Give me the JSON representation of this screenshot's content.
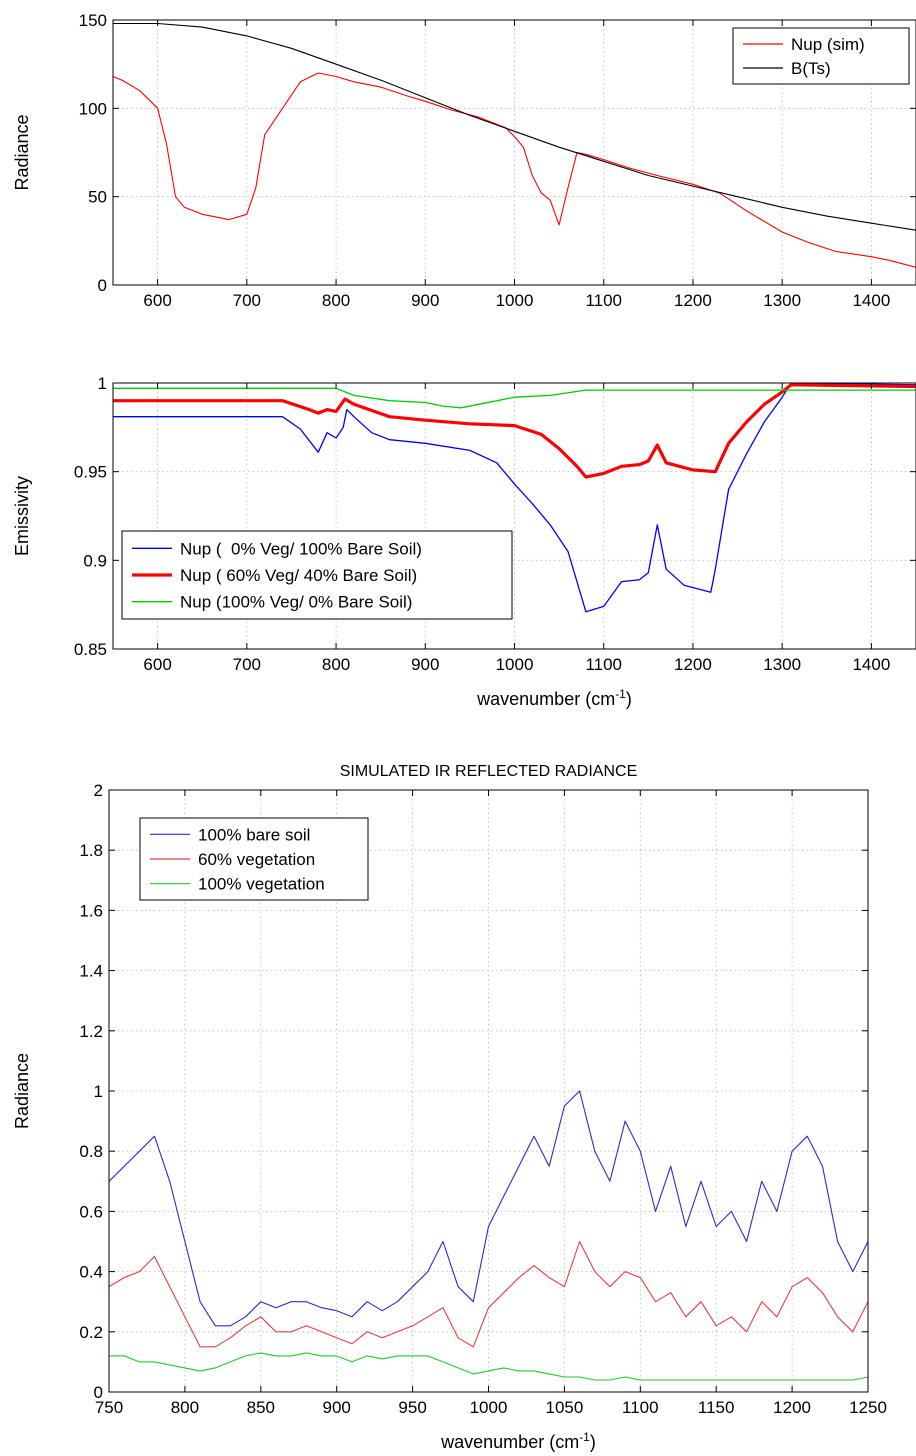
{
  "chart_data": [
    {
      "type": "line",
      "title": "",
      "xlabel": "",
      "ylabel": "Radiance",
      "xlim": [
        550,
        1450
      ],
      "ylim": [
        0,
        150
      ],
      "xticks": [
        600,
        700,
        800,
        900,
        1000,
        1100,
        1200,
        1300,
        1400
      ],
      "yticks": [
        0,
        50,
        100,
        150
      ],
      "grid": true,
      "legend_position": "top-right",
      "series": [
        {
          "name": "Nup (sim)",
          "color": "#ff0000",
          "x": [
            550,
            560,
            580,
            600,
            610,
            620,
            630,
            650,
            680,
            700,
            710,
            720,
            740,
            760,
            780,
            800,
            820,
            850,
            880,
            900,
            930,
            960,
            990,
            1000,
            1010,
            1020,
            1030,
            1040,
            1050,
            1060,
            1070,
            1080,
            1100,
            1130,
            1160,
            1200,
            1230,
            1260,
            1300,
            1330,
            1360,
            1400,
            1420,
            1450
          ],
          "y": [
            118,
            116,
            110,
            100,
            80,
            50,
            44,
            40,
            37,
            40,
            55,
            85,
            100,
            115,
            120,
            118,
            115,
            112,
            107,
            104,
            99,
            95,
            89,
            84,
            78,
            62,
            52,
            48,
            34,
            55,
            75,
            74,
            71,
            66,
            62,
            57,
            52,
            42,
            30,
            24,
            19,
            16,
            14,
            10
          ]
        },
        {
          "name": "B(Ts)",
          "color": "#000000",
          "x": [
            550,
            600,
            650,
            700,
            750,
            800,
            850,
            900,
            950,
            1000,
            1050,
            1100,
            1150,
            1200,
            1250,
            1300,
            1350,
            1400,
            1450
          ],
          "y": [
            148,
            148,
            146,
            141,
            134,
            125,
            116,
            106,
            96,
            87,
            78,
            70,
            62,
            56,
            50,
            44,
            39,
            35,
            31
          ]
        }
      ]
    },
    {
      "type": "line",
      "title": "",
      "xlabel": "wavenumber (cm⁻¹)",
      "ylabel": "Emissivity",
      "xlim": [
        550,
        1450
      ],
      "ylim": [
        0.85,
        1
      ],
      "xticks": [
        600,
        700,
        800,
        900,
        1000,
        1100,
        1200,
        1300,
        1400
      ],
      "yticks": [
        "0.85",
        "0.9",
        "0.95",
        "1"
      ],
      "grid": true,
      "legend_position": "lower-left",
      "series": [
        {
          "name": "Nup (  0% Veg/ 100% Bare Soil)",
          "color": "#0000ff",
          "width": 1.3,
          "x": [
            550,
            740,
            760,
            780,
            790,
            800,
            808,
            812,
            820,
            840,
            860,
            900,
            950,
            980,
            1000,
            1020,
            1040,
            1060,
            1080,
            1100,
            1120,
            1140,
            1150,
            1160,
            1170,
            1190,
            1220,
            1225,
            1240,
            1260,
            1280,
            1300,
            1310,
            1450
          ],
          "y": [
            0.981,
            0.981,
            0.974,
            0.961,
            0.972,
            0.969,
            0.975,
            0.985,
            0.981,
            0.972,
            0.968,
            0.966,
            0.962,
            0.955,
            0.943,
            0.932,
            0.92,
            0.905,
            0.871,
            0.874,
            0.888,
            0.889,
            0.893,
            0.92,
            0.895,
            0.886,
            0.882,
            0.895,
            0.94,
            0.96,
            0.978,
            0.992,
            1.0,
            0.999
          ]
        },
        {
          "name": "Nup ( 60% Veg/ 40% Bare Soil)",
          "color": "#ff0000",
          "width": 3.2,
          "x": [
            550,
            740,
            770,
            780,
            790,
            800,
            810,
            820,
            860,
            900,
            950,
            1000,
            1030,
            1050,
            1070,
            1080,
            1100,
            1120,
            1140,
            1150,
            1160,
            1170,
            1200,
            1225,
            1240,
            1260,
            1280,
            1300,
            1310,
            1450
          ],
          "y": [
            0.99,
            0.99,
            0.985,
            0.983,
            0.985,
            0.984,
            0.991,
            0.988,
            0.981,
            0.979,
            0.977,
            0.976,
            0.971,
            0.963,
            0.953,
            0.947,
            0.949,
            0.953,
            0.954,
            0.956,
            0.965,
            0.955,
            0.951,
            0.95,
            0.966,
            0.978,
            0.988,
            0.995,
            0.999,
            0.998
          ]
        },
        {
          "name": "Nup (100% Veg/ 0% Bare Soil)",
          "color": "#00cc00",
          "width": 1.3,
          "x": [
            550,
            800,
            820,
            860,
            900,
            920,
            940,
            960,
            1000,
            1040,
            1080,
            1100,
            1300,
            1450
          ],
          "y": [
            0.997,
            0.997,
            0.993,
            0.99,
            0.989,
            0.987,
            0.986,
            0.988,
            0.992,
            0.993,
            0.996,
            0.996,
            0.996,
            0.996
          ]
        }
      ]
    },
    {
      "type": "line",
      "title": "SIMULATED IR REFLECTED RADIANCE",
      "xlabel": "wavenumber (cm⁻¹)",
      "ylabel": "Radiance",
      "xlim": [
        750,
        1250
      ],
      "ylim": [
        0,
        2
      ],
      "xticks": [
        750,
        800,
        850,
        900,
        950,
        1000,
        1050,
        1100,
        1150,
        1200,
        1250
      ],
      "yticks": [
        "0",
        "0.2",
        "0.4",
        "0.6",
        "0.8",
        "1",
        "1.2",
        "1.4",
        "1.6",
        "1.8",
        "2"
      ],
      "grid": true,
      "legend_position": "top-left",
      "series": [
        {
          "name": "100% bare soil",
          "color": "#2b2bcc",
          "x": [
            750,
            760,
            770,
            780,
            790,
            800,
            810,
            820,
            830,
            840,
            850,
            860,
            870,
            880,
            890,
            900,
            910,
            920,
            930,
            940,
            950,
            960,
            970,
            980,
            990,
            1000,
            1010,
            1020,
            1030,
            1040,
            1050,
            1060,
            1070,
            1080,
            1090,
            1100,
            1110,
            1120,
            1130,
            1140,
            1150,
            1160,
            1170,
            1180,
            1190,
            1200,
            1210,
            1220,
            1230,
            1240,
            1250
          ],
          "y": [
            0.7,
            0.75,
            0.8,
            0.85,
            0.7,
            0.5,
            0.3,
            0.22,
            0.22,
            0.25,
            0.3,
            0.28,
            0.3,
            0.3,
            0.28,
            0.27,
            0.25,
            0.3,
            0.27,
            0.3,
            0.35,
            0.4,
            0.5,
            0.35,
            0.3,
            0.55,
            0.65,
            0.75,
            0.85,
            0.75,
            0.95,
            1.0,
            0.8,
            0.7,
            0.9,
            0.8,
            0.6,
            0.75,
            0.55,
            0.7,
            0.55,
            0.6,
            0.5,
            0.7,
            0.6,
            0.8,
            0.85,
            0.75,
            0.5,
            0.4,
            0.5
          ]
        },
        {
          "name": "60% vegetation",
          "color": "#e04040",
          "x": [
            750,
            760,
            770,
            780,
            790,
            800,
            810,
            820,
            830,
            840,
            850,
            860,
            870,
            880,
            890,
            900,
            910,
            920,
            930,
            940,
            950,
            960,
            970,
            980,
            990,
            1000,
            1010,
            1020,
            1030,
            1040,
            1050,
            1060,
            1070,
            1080,
            1090,
            1100,
            1110,
            1120,
            1130,
            1140,
            1150,
            1160,
            1170,
            1180,
            1190,
            1200,
            1210,
            1220,
            1230,
            1240,
            1250
          ],
          "y": [
            0.35,
            0.38,
            0.4,
            0.45,
            0.35,
            0.25,
            0.15,
            0.15,
            0.18,
            0.22,
            0.25,
            0.2,
            0.2,
            0.22,
            0.2,
            0.18,
            0.16,
            0.2,
            0.18,
            0.2,
            0.22,
            0.25,
            0.28,
            0.18,
            0.15,
            0.28,
            0.33,
            0.38,
            0.42,
            0.38,
            0.35,
            0.5,
            0.4,
            0.35,
            0.4,
            0.38,
            0.3,
            0.33,
            0.25,
            0.3,
            0.22,
            0.25,
            0.2,
            0.3,
            0.25,
            0.35,
            0.38,
            0.33,
            0.25,
            0.2,
            0.3
          ]
        },
        {
          "name": "100% vegetation",
          "color": "#22cc22",
          "x": [
            750,
            760,
            770,
            780,
            790,
            800,
            810,
            820,
            830,
            840,
            850,
            860,
            870,
            880,
            890,
            900,
            910,
            920,
            930,
            940,
            950,
            960,
            970,
            980,
            990,
            1000,
            1010,
            1020,
            1030,
            1040,
            1050,
            1060,
            1070,
            1080,
            1090,
            1100,
            1110,
            1120,
            1130,
            1140,
            1150,
            1160,
            1170,
            1180,
            1190,
            1200,
            1210,
            1220,
            1230,
            1240,
            1250
          ],
          "y": [
            0.12,
            0.12,
            0.1,
            0.1,
            0.09,
            0.08,
            0.07,
            0.08,
            0.1,
            0.12,
            0.13,
            0.12,
            0.12,
            0.13,
            0.12,
            0.12,
            0.1,
            0.12,
            0.11,
            0.12,
            0.12,
            0.12,
            0.1,
            0.08,
            0.06,
            0.07,
            0.08,
            0.07,
            0.07,
            0.06,
            0.05,
            0.05,
            0.04,
            0.04,
            0.05,
            0.04,
            0.04,
            0.04,
            0.04,
            0.04,
            0.04,
            0.04,
            0.04,
            0.04,
            0.04,
            0.04,
            0.04,
            0.04,
            0.04,
            0.04,
            0.05
          ]
        }
      ]
    }
  ]
}
